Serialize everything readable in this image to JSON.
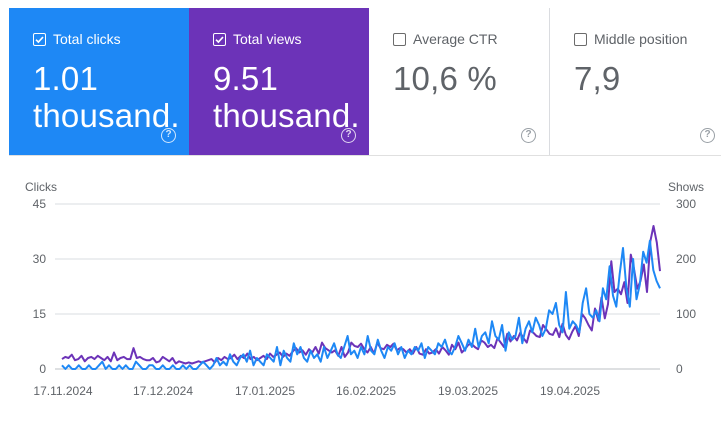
{
  "metrics": [
    {
      "id": "clicks",
      "label": "Total clicks",
      "value": "1.01 thousand.",
      "checked": true
    },
    {
      "id": "views",
      "label": "Total views",
      "value": "9.51 thousand.",
      "checked": true
    },
    {
      "id": "ctr",
      "label": "Average CTR",
      "value": "10,6 %",
      "checked": false
    },
    {
      "id": "position",
      "label": "Middle position",
      "value": "7,9",
      "checked": false
    }
  ],
  "help_icon": "?",
  "colors": {
    "clicks": "#1e88f5",
    "views": "#6c33b8",
    "grid": "#dadce0",
    "axis_text": "#5f6368"
  },
  "chart_data": {
    "type": "line",
    "y_left_label": "Clicks",
    "y_right_label": "Shows",
    "y_left_ticks": [
      "45",
      "30",
      "15",
      "0"
    ],
    "y_right_ticks": [
      "300",
      "200",
      "100",
      "0"
    ],
    "ylim_left": [
      0,
      45
    ],
    "ylim_right": [
      0,
      300
    ],
    "grid": true,
    "x_tick_labels": [
      "17.11.2024",
      "17.12.2024",
      "17.01.2025",
      "16.02.2025",
      "19.03.2025",
      "19.04.2025"
    ],
    "series": [
      {
        "name": "Total clicks",
        "axis": "left",
        "values": [
          1,
          0,
          1,
          0,
          0,
          1,
          0,
          0,
          1,
          0,
          0,
          1,
          2,
          0,
          1,
          0,
          0,
          1,
          0,
          1,
          0,
          0,
          2,
          1,
          0,
          0,
          1,
          1,
          0,
          0,
          1,
          0,
          0,
          1,
          0,
          0,
          1,
          0,
          1,
          0,
          0,
          1,
          2,
          1,
          0,
          1,
          3,
          1,
          2,
          1,
          4,
          2,
          1,
          3,
          4,
          2,
          5,
          1,
          3,
          2,
          1,
          4,
          3,
          2,
          6,
          1,
          5,
          3,
          2,
          7,
          4,
          6,
          3,
          2,
          5,
          3,
          4,
          2,
          6,
          3,
          5,
          7,
          4,
          3,
          6,
          9,
          4,
          5,
          3,
          6,
          4,
          9,
          5,
          4,
          8,
          5,
          3,
          6,
          5,
          7,
          4,
          6,
          3,
          5,
          4,
          6,
          5,
          7,
          3,
          6,
          5,
          4,
          7,
          6,
          8,
          5,
          4,
          6,
          9,
          7,
          5,
          8,
          6,
          11,
          6,
          9,
          10,
          7,
          13,
          9,
          8,
          12,
          5,
          10,
          8,
          9,
          14,
          7,
          11,
          13,
          10,
          14,
          12,
          9,
          11,
          16,
          15,
          18,
          12,
          10,
          21,
          11,
          13,
          12,
          10,
          18,
          22,
          15,
          14,
          16,
          13,
          22,
          19,
          28,
          20,
          17,
          26,
          33,
          22,
          17,
          30,
          19,
          23,
          32,
          29,
          35,
          27,
          24,
          22
        ]
      },
      {
        "name": "Total views",
        "axis": "right",
        "values": [
          18,
          22,
          20,
          26,
          16,
          18,
          24,
          14,
          20,
          22,
          18,
          24,
          20,
          16,
          22,
          14,
          30,
          16,
          20,
          22,
          18,
          18,
          38,
          20,
          22,
          18,
          16,
          16,
          20,
          12,
          14,
          22,
          18,
          14,
          20,
          10,
          14,
          12,
          10,
          12,
          10,
          12,
          14,
          12,
          14,
          16,
          18,
          12,
          20,
          16,
          22,
          18,
          20,
          26,
          18,
          24,
          20,
          28,
          18,
          22,
          16,
          20,
          24,
          18,
          28,
          22,
          26,
          30,
          22,
          28,
          24,
          32,
          38,
          30,
          34,
          26,
          36,
          30,
          40,
          28,
          48,
          38,
          34,
          30,
          34,
          24,
          40,
          22,
          30,
          48,
          42,
          40,
          46,
          36,
          30,
          40,
          28,
          48,
          38,
          36,
          44,
          40,
          46,
          34,
          38,
          36,
          30,
          36,
          28,
          40,
          28,
          26,
          36,
          28,
          30,
          36,
          28,
          40,
          34,
          26,
          44,
          36,
          48,
          30,
          36,
          44,
          46,
          40,
          36,
          52,
          48,
          40,
          44,
          38,
          56,
          48,
          40,
          64,
          50,
          60,
          52,
          66,
          56,
          48,
          70,
          66,
          60,
          58,
          80,
          72,
          64,
          62,
          74,
          58,
          82,
          62,
          54,
          68,
          78,
          60,
          100,
          92,
          80,
          70,
          110,
          88,
          130,
          92,
          118,
          196,
          140,
          146,
          136,
          158,
          120,
          208,
          182,
          146,
          160,
          190,
          140,
          232,
          260,
          230,
          178
        ]
      }
    ]
  }
}
